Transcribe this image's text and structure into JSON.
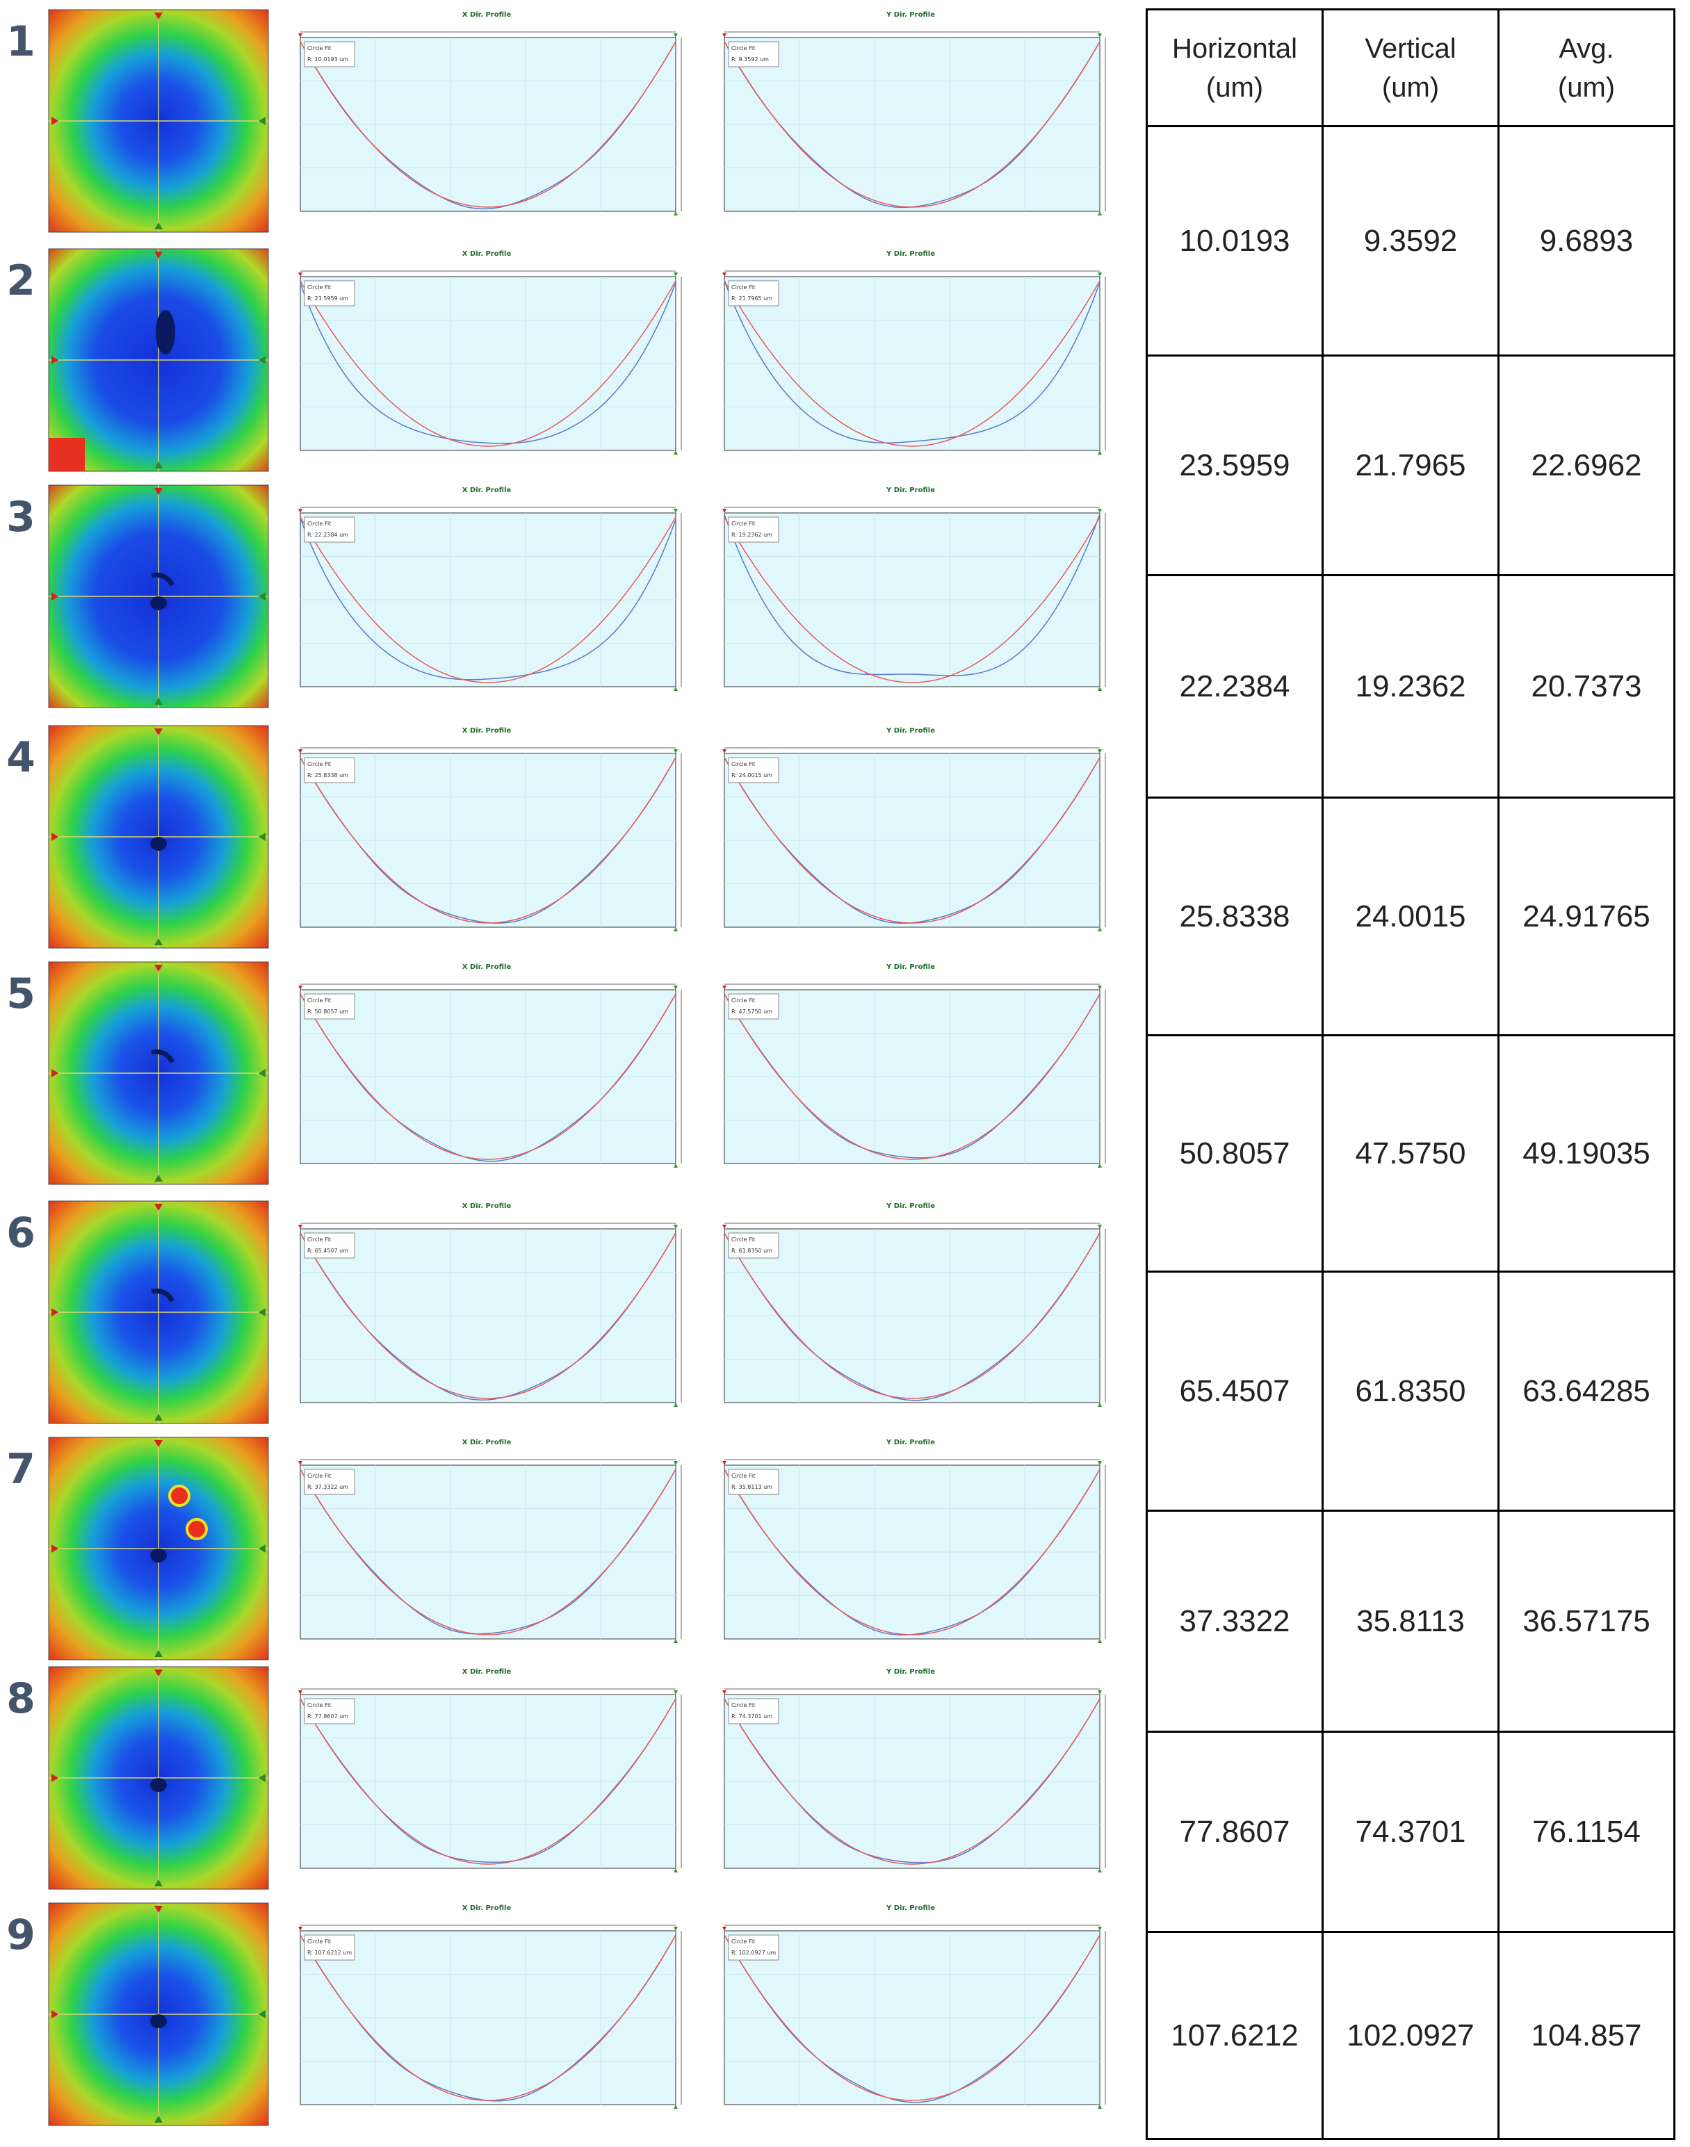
{
  "table": {
    "headers": [
      {
        "l1": "Horizontal",
        "l2": "(um)"
      },
      {
        "l1": "Vertical",
        "l2": "(um)"
      },
      {
        "l1": "Avg.",
        "l2": "(um)"
      }
    ],
    "rows": [
      [
        "10.0193",
        "9.3592",
        "9.6893"
      ],
      [
        "23.5959",
        "21.7965",
        "22.6962"
      ],
      [
        "22.2384",
        "19.2362",
        "20.7373"
      ],
      [
        "25.8338",
        "24.0015",
        "24.91765"
      ],
      [
        "50.8057",
        "47.5750",
        "49.19035"
      ],
      [
        "65.4507",
        "61.8350",
        "63.64285"
      ],
      [
        "37.3322",
        "35.8113",
        "36.57175"
      ],
      [
        "77.8607",
        "74.3701",
        "76.1154"
      ],
      [
        "107.6212",
        "102.0927",
        "104.857"
      ]
    ]
  },
  "profile_titles": {
    "x": "X Dir. Profile",
    "y": "Y Dir. Profile"
  },
  "fit_label": "Circle Fit",
  "samples": [
    {
      "n": "1",
      "rx": "R: 10.0193 um",
      "ry": "R: 9.3592 um",
      "flat": 0,
      "defects": []
    },
    {
      "n": "2",
      "rx": "R: 23.5959 um",
      "ry": "R: 21.7965 um",
      "flat": 1,
      "defects": [
        {
          "t": "blob"
        },
        {
          "t": "corner"
        }
      ]
    },
    {
      "n": "3",
      "rx": "R: 22.2384 um",
      "ry": "R: 19.2362 um",
      "flat": 1,
      "defects": [
        {
          "t": "dot"
        },
        {
          "t": "streak"
        }
      ]
    },
    {
      "n": "4",
      "rx": "R: 25.8338 um",
      "ry": "R: 24.0015 um",
      "flat": 0,
      "defects": [
        {
          "t": "dot"
        }
      ]
    },
    {
      "n": "5",
      "rx": "R: 50.8057 um",
      "ry": "R: 47.5750 um",
      "flat": 0,
      "defects": [
        {
          "t": "streak"
        }
      ]
    },
    {
      "n": "6",
      "rx": "R: 65.4507 um",
      "ry": "R: 61.8350 um",
      "flat": 0,
      "defects": [
        {
          "t": "streak"
        }
      ]
    },
    {
      "n": "7",
      "rx": "R: 37.3322 um",
      "ry": "R: 35.8113 um",
      "flat": 0,
      "defects": [
        {
          "t": "redspots"
        },
        {
          "t": "dot"
        }
      ]
    },
    {
      "n": "8",
      "rx": "R: 77.8607 um",
      "ry": "R: 74.3701 um",
      "flat": 0,
      "defects": [
        {
          "t": "dot"
        }
      ]
    },
    {
      "n": "9",
      "rx": "R: 107.6212 um",
      "ry": "R: 102.0927 um",
      "flat": 0,
      "defects": [
        {
          "t": "dot"
        }
      ]
    }
  ],
  "colors": {
    "map_center": "#1a3fdb",
    "map_edge": "#e83418",
    "map_mid": "#2fd14a",
    "plot_bg": "#e0f8fc",
    "fit_curve": "#e85a5a",
    "meas_curve": "#5a78c8",
    "row_label": "#44546a"
  }
}
